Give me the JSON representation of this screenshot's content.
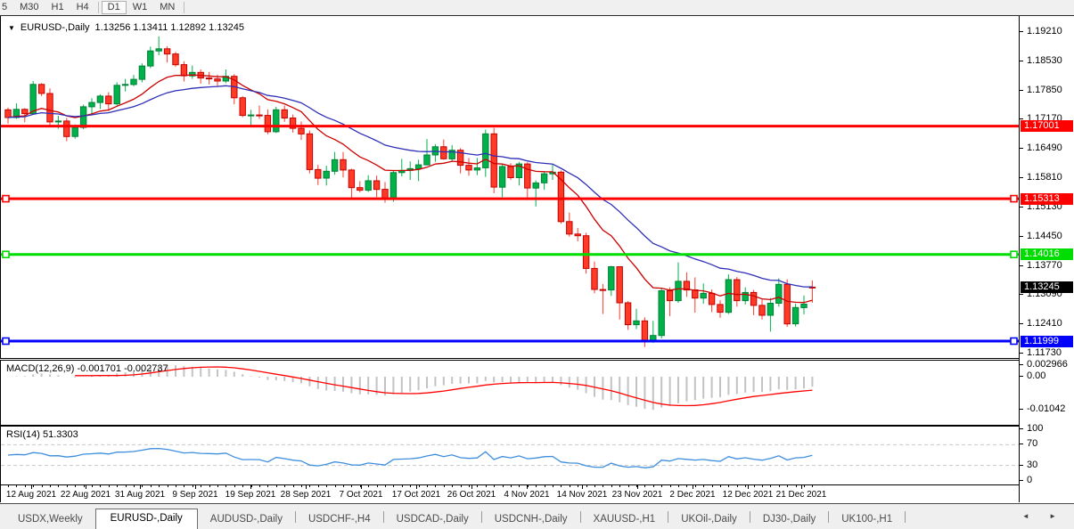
{
  "toolbar": {
    "timeframes": [
      "5",
      "M30",
      "H1",
      "H4",
      "D1",
      "W1",
      "MN"
    ],
    "active_timeframe": "D1"
  },
  "chart": {
    "collapse_arrow": "▼",
    "title": "EURUSD-,Daily",
    "ohlc": "1.13256 1.13411 1.12892 1.13245"
  },
  "chart_data": {
    "type": "candlestick",
    "symbol": "EURUSD-",
    "period": "Daily",
    "last_bar": {
      "open": 1.13256,
      "high": 1.13411,
      "low": 1.12892,
      "close": 1.13245
    },
    "view_range": {
      "top": 1.1921,
      "bottom": 1.1173
    },
    "y_ticks": [
      "1.19210",
      "1.18530",
      "1.17850",
      "1.17170",
      "1.16490",
      "1.15810",
      "1.15130",
      "1.14450",
      "1.13770",
      "1.13090",
      "1.12410",
      "1.11730"
    ],
    "x_labels": [
      "12 Aug 2021",
      "22 Aug 2021",
      "31 Aug 2021",
      "9 Sep 2021",
      "19 Sep 2021",
      "28 Sep 2021",
      "7 Oct 2021",
      "17 Oct 2021",
      "26 Oct 2021",
      "4 Nov 2021",
      "14 Nov 2021",
      "23 Nov 2021",
      "2 Dec 2021",
      "12 Dec 2021",
      "21 Dec 2021"
    ],
    "up_color": "#00b24a",
    "up_border": "#007f35",
    "down_color": "#ff3b28",
    "down_border": "#c40000",
    "moving_averages": [
      {
        "period": 12,
        "color": "#cc0000"
      },
      {
        "period": 26,
        "color": "#2e2eb8"
      }
    ],
    "levels": [
      {
        "price": 1.17001,
        "label": "1.17001",
        "color": "#ff0000",
        "selected": false
      },
      {
        "price": 1.15313,
        "label": "1.15313",
        "color": "#ff0000",
        "selected": true
      },
      {
        "price": 1.14016,
        "label": "1.14016",
        "color": "#00dd00",
        "selected": true
      },
      {
        "price": 1.11999,
        "label": "1.11999",
        "color": "#0000ff",
        "selected": true
      }
    ],
    "current_price": {
      "value": 1.13245,
      "label": "1.13245",
      "bg": "#000000",
      "fg": "#ffffff"
    },
    "indicators": [
      {
        "name": "MACD",
        "settings": "12,26,9",
        "label": "MACD(12,26,9) -0.001701 -0.002737",
        "value": -0.001701,
        "signal_value": -0.002737,
        "axis_labels": [
          "0.002966",
          "0.00",
          "-0.01042"
        ],
        "histogram_color": "#c3c3c3",
        "signal_color": "#ff0000"
      },
      {
        "name": "RSI",
        "settings": "14",
        "label": "RSI(14) 51.3303",
        "value": 51.3303,
        "axis_labels": [
          "100",
          "70",
          "30",
          "0"
        ],
        "line_color": "#3e8ede",
        "level_lines": [
          70,
          30
        ],
        "level_color": "#c8c8c8"
      }
    ],
    "candles": [
      [
        1.1738,
        1.1743,
        1.1706,
        1.172
      ],
      [
        1.172,
        1.1753,
        1.1717,
        1.1739
      ],
      [
        1.1739,
        1.1742,
        1.1709,
        1.1729
      ],
      [
        1.1729,
        1.1805,
        1.1727,
        1.1797
      ],
      [
        1.1797,
        1.18,
        1.177,
        1.1776
      ],
      [
        1.1776,
        1.1788,
        1.1702,
        1.171
      ],
      [
        1.171,
        1.1724,
        1.1694,
        1.1712
      ],
      [
        1.1712,
        1.1719,
        1.1665,
        1.1676
      ],
      [
        1.1676,
        1.1704,
        1.1671,
        1.1697
      ],
      [
        1.1697,
        1.175,
        1.1693,
        1.1745
      ],
      [
        1.1745,
        1.1765,
        1.1728,
        1.1755
      ],
      [
        1.1755,
        1.1774,
        1.174,
        1.177
      ],
      [
        1.177,
        1.1779,
        1.1735,
        1.1752
      ],
      [
        1.1752,
        1.1802,
        1.1748,
        1.1795
      ],
      [
        1.1795,
        1.181,
        1.1781,
        1.1797
      ],
      [
        1.1797,
        1.1819,
        1.1793,
        1.1809
      ],
      [
        1.1809,
        1.1846,
        1.1802,
        1.184
      ],
      [
        1.184,
        1.1885,
        1.1835,
        1.1875
      ],
      [
        1.1875,
        1.1909,
        1.1865,
        1.188
      ],
      [
        1.188,
        1.1886,
        1.1848,
        1.1868
      ],
      [
        1.1868,
        1.1873,
        1.1838,
        1.1843
      ],
      [
        1.1843,
        1.1851,
        1.1804,
        1.1817
      ],
      [
        1.1817,
        1.1841,
        1.181,
        1.1825
      ],
      [
        1.1825,
        1.1832,
        1.1799,
        1.1812
      ],
      [
        1.1812,
        1.1826,
        1.1797,
        1.181
      ],
      [
        1.181,
        1.182,
        1.1793,
        1.1805
      ],
      [
        1.1805,
        1.1832,
        1.18,
        1.1816
      ],
      [
        1.1816,
        1.1821,
        1.1751,
        1.1766
      ],
      [
        1.1766,
        1.177,
        1.1721,
        1.1725
      ],
      [
        1.1725,
        1.1738,
        1.17,
        1.1726
      ],
      [
        1.1726,
        1.1748,
        1.1717,
        1.1725
      ],
      [
        1.1725,
        1.1739,
        1.1681,
        1.1687
      ],
      [
        1.1687,
        1.1745,
        1.1684,
        1.1738
      ],
      [
        1.1738,
        1.1748,
        1.171,
        1.1719
      ],
      [
        1.1719,
        1.1727,
        1.1685,
        1.1695
      ],
      [
        1.1695,
        1.1711,
        1.1668,
        1.1682
      ],
      [
        1.1682,
        1.169,
        1.159,
        1.1599
      ],
      [
        1.1599,
        1.161,
        1.1563,
        1.1579
      ],
      [
        1.1579,
        1.1608,
        1.1562,
        1.1595
      ],
      [
        1.1595,
        1.164,
        1.1587,
        1.1622
      ],
      [
        1.1622,
        1.164,
        1.1581,
        1.1598
      ],
      [
        1.1598,
        1.1601,
        1.1529,
        1.1557
      ],
      [
        1.1557,
        1.1572,
        1.1546,
        1.1551
      ],
      [
        1.1551,
        1.1586,
        1.1547,
        1.1573
      ],
      [
        1.1573,
        1.1585,
        1.1535,
        1.1553
      ],
      [
        1.1553,
        1.157,
        1.1522,
        1.1531
      ],
      [
        1.1531,
        1.1598,
        1.1524,
        1.1592
      ],
      [
        1.1592,
        1.1624,
        1.1583,
        1.1597
      ],
      [
        1.1597,
        1.1618,
        1.1575,
        1.1601
      ],
      [
        1.1601,
        1.1622,
        1.1572,
        1.161
      ],
      [
        1.161,
        1.167,
        1.1609,
        1.1633
      ],
      [
        1.1633,
        1.1658,
        1.1617,
        1.1652
      ],
      [
        1.1652,
        1.1669,
        1.1622,
        1.1624
      ],
      [
        1.1624,
        1.1656,
        1.1618,
        1.1644
      ],
      [
        1.1644,
        1.1649,
        1.159,
        1.1609
      ],
      [
        1.1609,
        1.1626,
        1.1585,
        1.1598
      ],
      [
        1.1598,
        1.1626,
        1.1586,
        1.1603
      ],
      [
        1.1603,
        1.1692,
        1.1582,
        1.1682
      ],
      [
        1.1682,
        1.1696,
        1.1544,
        1.1558
      ],
      [
        1.1558,
        1.161,
        1.1535,
        1.1606
      ],
      [
        1.1606,
        1.1614,
        1.1575,
        1.158
      ],
      [
        1.158,
        1.1617,
        1.1562,
        1.1612
      ],
      [
        1.1612,
        1.1616,
        1.1528,
        1.1556
      ],
      [
        1.1556,
        1.1574,
        1.1513,
        1.1568
      ],
      [
        1.1568,
        1.1595,
        1.1552,
        1.1589
      ],
      [
        1.1589,
        1.161,
        1.1575,
        1.1593
      ],
      [
        1.1593,
        1.1597,
        1.1473,
        1.1478
      ],
      [
        1.1478,
        1.1499,
        1.1443,
        1.1449
      ],
      [
        1.1449,
        1.1463,
        1.1432,
        1.1445
      ],
      [
        1.1445,
        1.1452,
        1.1357,
        1.1369
      ],
      [
        1.1369,
        1.1385,
        1.1311,
        1.132
      ],
      [
        1.132,
        1.1333,
        1.1263,
        1.1319
      ],
      [
        1.1319,
        1.1375,
        1.1305,
        1.1373
      ],
      [
        1.1373,
        1.1374,
        1.125,
        1.1289
      ],
      [
        1.1289,
        1.1293,
        1.1226,
        1.1238
      ],
      [
        1.1238,
        1.1275,
        1.1228,
        1.1247
      ],
      [
        1.1247,
        1.1255,
        1.1186,
        1.12
      ],
      [
        1.12,
        1.1247,
        1.1196,
        1.1213
      ],
      [
        1.1213,
        1.1323,
        1.1206,
        1.1317
      ],
      [
        1.1317,
        1.1325,
        1.1258,
        1.1294
      ],
      [
        1.1294,
        1.1383,
        1.1289,
        1.1339
      ],
      [
        1.1339,
        1.136,
        1.1303,
        1.1319
      ],
      [
        1.1319,
        1.1348,
        1.1266,
        1.13
      ],
      [
        1.13,
        1.1334,
        1.1287,
        1.1311
      ],
      [
        1.1311,
        1.132,
        1.1267,
        1.1285
      ],
      [
        1.1285,
        1.1295,
        1.1254,
        1.1267
      ],
      [
        1.1267,
        1.1355,
        1.1263,
        1.1343
      ],
      [
        1.1343,
        1.1349,
        1.128,
        1.1294
      ],
      [
        1.1294,
        1.1325,
        1.1285,
        1.1313
      ],
      [
        1.1313,
        1.1319,
        1.126,
        1.1283
      ],
      [
        1.1283,
        1.1297,
        1.125,
        1.126
      ],
      [
        1.126,
        1.13,
        1.1222,
        1.1288
      ],
      [
        1.1288,
        1.1346,
        1.128,
        1.1332
      ],
      [
        1.1332,
        1.1344,
        1.1233,
        1.124
      ],
      [
        1.124,
        1.1287,
        1.1234,
        1.1278
      ],
      [
        1.1278,
        1.1306,
        1.1262,
        1.1286
      ],
      [
        1.13256,
        1.13411,
        1.12892,
        1.13245
      ]
    ]
  },
  "tabs": {
    "items": [
      {
        "label": "USDX,Weekly",
        "active": false
      },
      {
        "label": "EURUSD-,Daily",
        "active": true
      },
      {
        "label": "AUDUSD-,Daily",
        "active": false
      },
      {
        "label": "USDCHF-,H4",
        "active": false
      },
      {
        "label": "USDCAD-,Daily",
        "active": false
      },
      {
        "label": "USDCNH-,Daily",
        "active": false
      },
      {
        "label": "XAUUSD-,H1",
        "active": false
      },
      {
        "label": "UKOil-,Daily",
        "active": false
      },
      {
        "label": "DJ30-,Daily",
        "active": false
      },
      {
        "label": "UK100-,H1",
        "active": false
      }
    ],
    "scroll_left": "◄",
    "scroll_right": "►"
  }
}
